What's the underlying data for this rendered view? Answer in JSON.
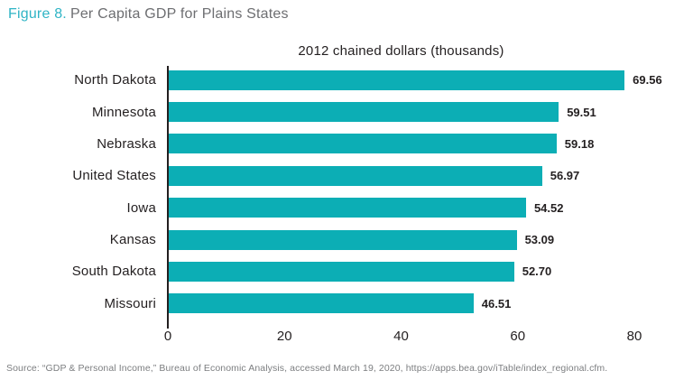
{
  "figure_label": "Figure 8.",
  "figure_title": "Per Capita GDP for Plains States",
  "chart_data": {
    "type": "bar",
    "orientation": "horizontal",
    "title": "2012 chained dollars (thousands)",
    "categories": [
      "North Dakota",
      "Minnesota",
      "Nebraska",
      "United States",
      "Iowa",
      "Kansas",
      "South Dakota",
      "Missouri"
    ],
    "values": [
      69.56,
      59.51,
      59.18,
      56.97,
      54.52,
      53.09,
      52.7,
      46.51
    ],
    "value_labels": [
      "69.56",
      "59.51",
      "59.18",
      "56.97",
      "54.52",
      "53.09",
      "52.70",
      "46.51"
    ],
    "xlabel": "",
    "ylabel": "",
    "xlim": [
      0,
      80
    ],
    "xticks": [
      0,
      20,
      40,
      60,
      80
    ],
    "grid": false,
    "legend": false,
    "bar_color": "#0caeb5"
  },
  "source_note": "Source: “GDP & Personal Income,” Bureau of Economic Analysis, accessed March 19, 2020, https://apps.bea.gov/iTable/index_regional.cfm.",
  "colors": {
    "bar_teal": "#0caeb5",
    "figure_label_teal": "#2fb4c5",
    "figure_title_gray": "#6d6e71",
    "text_dark": "#231f20",
    "source_gray": "#7c7e80",
    "axis_black": "#231f20"
  }
}
